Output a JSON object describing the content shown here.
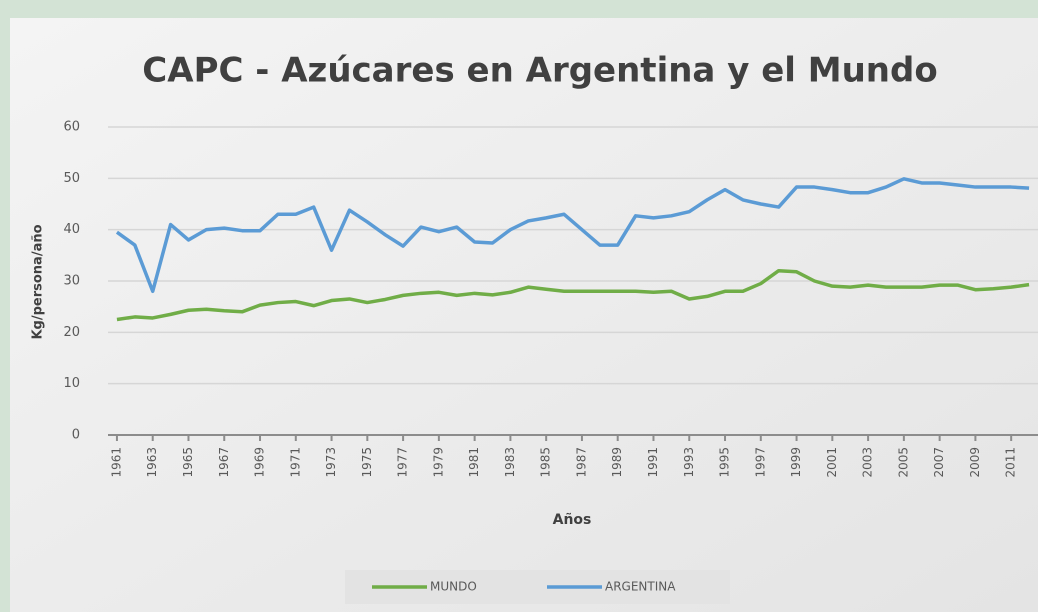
{
  "chart_data": {
    "type": "line",
    "title": "CAPC - Azúcares en Argentina y el Mundo",
    "y_label": "Kg/persona/año",
    "x_label": "Años",
    "x": [
      1961,
      1962,
      1963,
      1964,
      1965,
      1966,
      1967,
      1968,
      1969,
      1970,
      1971,
      1972,
      1973,
      1974,
      1975,
      1976,
      1977,
      1978,
      1979,
      1980,
      1981,
      1982,
      1983,
      1984,
      1985,
      1986,
      1987,
      1988,
      1989,
      1990,
      1991,
      1992,
      1993,
      1994,
      1995,
      1996,
      1997,
      1998,
      1999,
      2000,
      2001,
      2002,
      2003,
      2004,
      2005,
      2006,
      2007,
      2008,
      2009,
      2010,
      2011,
      2012
    ],
    "xlim": [
      1960.5,
      2012.5
    ],
    "xticks": [
      1961,
      1963,
      1965,
      1967,
      1969,
      1971,
      1973,
      1975,
      1977,
      1979,
      1981,
      1983,
      1985,
      1987,
      1989,
      1991,
      1993,
      1995,
      1997,
      1999,
      2001,
      2003,
      2005,
      2007,
      2009,
      2011
    ],
    "ylim": [
      0,
      60
    ],
    "yticks": [
      0,
      10,
      20,
      30,
      40,
      50,
      60
    ],
    "grid": true,
    "legend": "bottom",
    "series": [
      {
        "name": "MUNDO",
        "color": "#70ad47",
        "values": [
          22.5,
          23,
          22.8,
          23.5,
          24.3,
          24.5,
          24.2,
          24,
          25.3,
          25.8,
          26,
          25.2,
          26.2,
          26.5,
          25.8,
          26.4,
          27.2,
          27.6,
          27.8,
          27.2,
          27.6,
          27.3,
          27.8,
          28.8,
          28.4,
          28,
          28,
          28,
          28,
          28,
          27.8,
          28,
          26.5,
          27,
          28,
          28,
          29.5,
          32,
          31.8,
          30,
          29,
          28.8,
          29.2,
          28.8,
          28.8,
          28.8,
          29.2,
          29.2,
          28.3,
          28.5,
          28.8,
          29.3
        ]
      },
      {
        "name": "ARGENTINA",
        "color": "#5b9bd5",
        "values": [
          39.5,
          37,
          28,
          41,
          38,
          40,
          40.3,
          39.8,
          39.8,
          43,
          43,
          44.4,
          36,
          43.8,
          41.5,
          39,
          36.8,
          40.5,
          39.6,
          40.5,
          37.6,
          37.4,
          40,
          41.7,
          42.3,
          43,
          40,
          37,
          37,
          42.7,
          42.3,
          42.7,
          43.5,
          45.8,
          47.8,
          45.8,
          45,
          44.4,
          48.3,
          48.3,
          47.8,
          47.2,
          47.2,
          48.3,
          49.9,
          49.1,
          49.1,
          48.7,
          48.3,
          48.3,
          48.3,
          48.1
        ]
      }
    ]
  }
}
